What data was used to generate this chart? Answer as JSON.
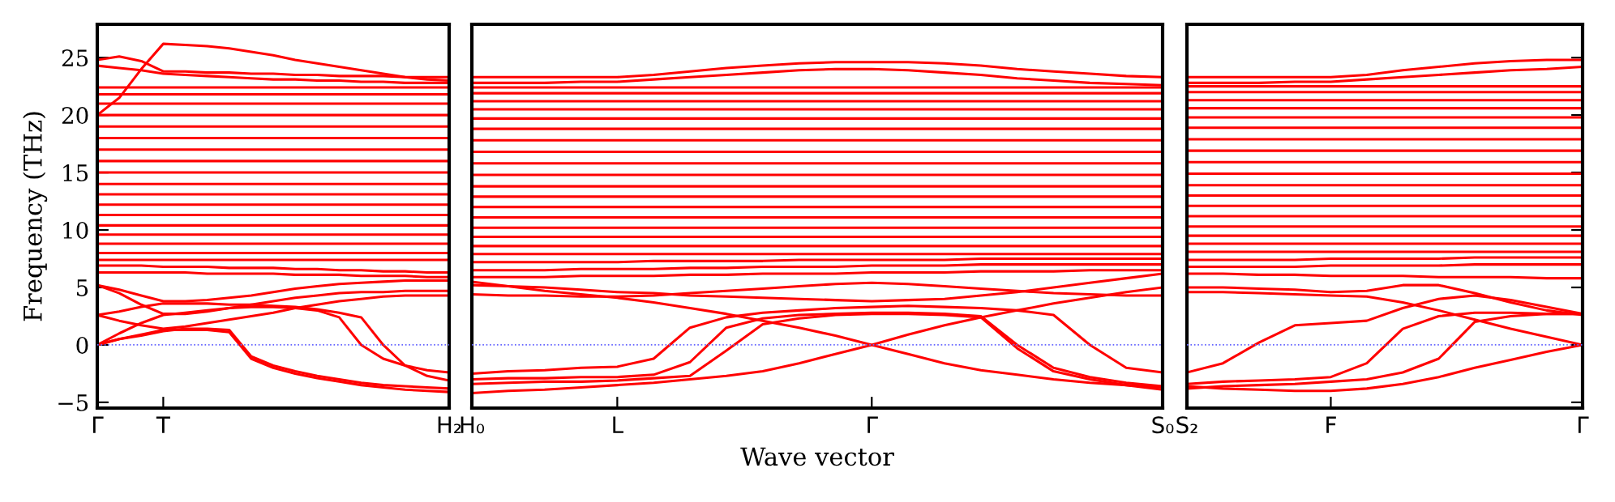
{
  "chart_data": [
    {
      "type": "line",
      "ylabel": "Frequency (THz)",
      "categories": [
        "Γ",
        null,
        null,
        "T",
        null,
        null,
        null,
        null,
        null,
        null,
        null,
        null,
        null,
        null,
        null,
        null,
        "H₂"
      ],
      "ylim": [
        -5.5,
        27.9
      ],
      "yticks": [
        {
          "value": -5,
          "label": "−5"
        },
        0,
        5,
        10,
        15,
        20,
        25
      ],
      "ref_lines": [
        {
          "axis": "y",
          "value": 0,
          "color": "#6666ff",
          "line_style": "dotted"
        }
      ],
      "series": [
        {
          "color": "#ff0000",
          "values": [
            0,
            0.5,
            0.9,
            1.3,
            1.3,
            1.3,
            1.1,
            -1.2,
            -2.0,
            -2.5,
            -2.9,
            -3.2,
            -3.5,
            -3.7,
            -3.9,
            -4.0,
            -4.1
          ]
        },
        {
          "color": "#ff0000",
          "values": [
            0,
            0.5,
            0.8,
            1.2,
            1.4,
            1.4,
            1.3,
            -1.0,
            -1.8,
            -2.3,
            -2.7,
            -3.0,
            -3.3,
            -3.5,
            -3.6,
            -3.7,
            -3.8
          ]
        },
        {
          "color": "#ff0000",
          "values": [
            0,
            1.0,
            1.9,
            2.6,
            2.8,
            3.0,
            3.2,
            3.3,
            3.3,
            3.2,
            3.0,
            2.4,
            0,
            -1.2,
            -1.8,
            -2.2,
            -2.4
          ]
        },
        {
          "color": "#ff0000",
          "values": [
            2.6,
            2.9,
            3.3,
            3.6,
            3.6,
            3.6,
            3.5,
            3.5,
            3.4,
            3.3,
            3.1,
            2.8,
            2.4,
            0,
            -1.8,
            -2.7,
            -3.1
          ]
        },
        {
          "color": "#ff0000",
          "values": [
            2.6,
            2.1,
            1.7,
            1.4,
            1.6,
            1.9,
            2.2,
            2.5,
            2.8,
            3.2,
            3.5,
            3.8,
            4.0,
            4.2,
            4.3,
            4.3,
            4.3
          ]
        },
        {
          "color": "#ff0000",
          "values": [
            5.2,
            4.5,
            3.5,
            2.7,
            2.7,
            2.9,
            3.2,
            3.5,
            3.8,
            4.1,
            4.3,
            4.5,
            4.6,
            4.6,
            4.7,
            4.7,
            4.7
          ]
        },
        {
          "color": "#ff0000",
          "values": [
            5.2,
            4.8,
            4.3,
            3.8,
            3.8,
            3.9,
            4.1,
            4.3,
            4.6,
            4.9,
            5.1,
            5.3,
            5.4,
            5.5,
            5.6,
            5.6,
            5.6
          ]
        },
        {
          "color": "#ff0000",
          "values": [
            20,
            21.5,
            24,
            26.2,
            26.1,
            26.0,
            25.8,
            25.5,
            25.2,
            24.8,
            24.5,
            24.2,
            23.9,
            23.6,
            23.3,
            23.1,
            23.0
          ]
        },
        {
          "color": "#ff0000",
          "values": [
            24.8,
            25.1,
            24.7,
            23.8,
            23.8,
            23.7,
            23.7,
            23.6,
            23.6,
            23.5,
            23.5,
            23.4,
            23.4,
            23.4,
            23.3,
            23.3,
            23.3
          ]
        },
        {
          "color": "#ff0000",
          "values": [
            24.3,
            24.1,
            23.9,
            23.6,
            23.5,
            23.4,
            23.3,
            23.2,
            23.1,
            23.1,
            23.0,
            23.0,
            22.9,
            22.9,
            22.8,
            22.8,
            22.8
          ]
        },
        {
          "color": "#ff0000",
          "values": [
            6.3,
            6.3,
            6.3,
            6.3,
            6.3,
            6.2,
            6.2,
            6.2,
            6.2,
            6.1,
            6.1,
            6.1,
            6.0,
            6.0,
            6.0,
            5.9,
            5.9
          ]
        },
        {
          "color": "#ff0000",
          "values": [
            6.9,
            6.9,
            6.9,
            6.8,
            6.8,
            6.8,
            6.7,
            6.7,
            6.7,
            6.6,
            6.6,
            6.5,
            6.5,
            6.4,
            6.4,
            6.3,
            6.3
          ]
        },
        {
          "color": "#ff0000",
          "values": [
            7.4,
            7.4,
            7.4,
            7.4,
            7.4,
            7.4,
            7.4,
            7.4,
            7.4,
            7.4,
            7.4,
            7.4,
            7.4,
            7.4,
            7.4,
            7.4,
            7.4
          ]
        },
        {
          "color": "#ff0000",
          "values": [
            8.0,
            8.0,
            8.0,
            8.0,
            8.0,
            8.0,
            8.0,
            8.0,
            8.0,
            8.0,
            8.0,
            8.0,
            8.0,
            8.0,
            8.0,
            8.0,
            8.0
          ]
        },
        {
          "color": "#ff0000",
          "values": [
            8.8,
            8.8,
            8.8,
            8.8,
            8.8,
            8.8,
            8.8,
            8.8,
            8.8,
            8.8,
            8.8,
            8.8,
            8.8,
            8.8,
            8.8,
            8.8,
            8.8
          ]
        },
        {
          "color": "#ff0000",
          "values": [
            9.6,
            9.6,
            9.6,
            9.6,
            9.6,
            9.6,
            9.6,
            9.6,
            9.6,
            9.6,
            9.6,
            9.6,
            9.6,
            9.6,
            9.6,
            9.6,
            9.6
          ]
        },
        {
          "color": "#ff0000",
          "values": [
            10.4,
            10.4,
            10.4,
            10.4,
            10.4,
            10.4,
            10.4,
            10.4,
            10.4,
            10.4,
            10.4,
            10.4,
            10.4,
            10.4,
            10.4,
            10.4,
            10.4
          ]
        },
        {
          "color": "#ff0000",
          "values": [
            11.3,
            11.3,
            11.3,
            11.3,
            11.3,
            11.3,
            11.3,
            11.3,
            11.3,
            11.3,
            11.3,
            11.3,
            11.3,
            11.3,
            11.3,
            11.3,
            11.3
          ]
        },
        {
          "color": "#ff0000",
          "values": [
            12.2,
            12.2,
            12.2,
            12.2,
            12.2,
            12.2,
            12.2,
            12.2,
            12.2,
            12.2,
            12.2,
            12.2,
            12.2,
            12.2,
            12.2,
            12.2,
            12.2
          ]
        },
        {
          "color": "#ff0000",
          "values": [
            13.1,
            13.1,
            13.1,
            13.1,
            13.1,
            13.1,
            13.1,
            13.1,
            13.1,
            13.1,
            13.1,
            13.1,
            13.1,
            13.1,
            13.1,
            13.1,
            13.1
          ]
        },
        {
          "color": "#ff0000",
          "values": [
            14.0,
            14.0,
            14.0,
            14.0,
            14.0,
            14.0,
            14.0,
            14.0,
            14.0,
            14.0,
            14.0,
            14.0,
            14.0,
            14.0,
            14.0,
            14.0,
            14.0
          ]
        },
        {
          "color": "#ff0000",
          "values": [
            15.0,
            15.0,
            15.0,
            15.0,
            15.0,
            15.0,
            15.0,
            15.0,
            15.0,
            15.0,
            15.0,
            15.0,
            15.0,
            15.0,
            15.0,
            15.0,
            15.0
          ]
        },
        {
          "color": "#ff0000",
          "values": [
            16.0,
            16.0,
            16.0,
            16.0,
            16.0,
            16.0,
            16.0,
            16.0,
            16.0,
            16.0,
            16.0,
            16.0,
            16.0,
            16.0,
            16.0,
            16.0,
            16.0
          ]
        },
        {
          "color": "#ff0000",
          "values": [
            17.0,
            17.0,
            17.0,
            17.0,
            17.0,
            17.0,
            17.0,
            17.0,
            17.0,
            17.0,
            17.0,
            17.0,
            17.0,
            17.0,
            17.0,
            17.0,
            17.0
          ]
        },
        {
          "color": "#ff0000",
          "values": [
            18.0,
            18.0,
            18.0,
            18.0,
            18.0,
            18.0,
            18.0,
            18.0,
            18.0,
            18.0,
            18.0,
            18.0,
            18.0,
            18.0,
            18.0,
            18.0,
            18.0
          ]
        },
        {
          "color": "#ff0000",
          "values": [
            19.0,
            19.0,
            19.0,
            19.0,
            19.0,
            19.0,
            19.0,
            19.0,
            19.0,
            19.0,
            19.0,
            19.0,
            19.0,
            19.0,
            19.0,
            19.0,
            19.0
          ]
        },
        {
          "color": "#ff0000",
          "values": [
            20.0,
            20.0,
            20.0,
            20.0,
            20.0,
            20.0,
            20.0,
            20.0,
            20.0,
            20.0,
            20.0,
            20.0,
            20.0,
            20.0,
            20.0,
            20.0,
            20.0
          ]
        },
        {
          "color": "#ff0000",
          "values": [
            21.0,
            21.0,
            21.0,
            21.0,
            21.0,
            21.0,
            21.0,
            21.0,
            21.0,
            21.0,
            21.0,
            21.0,
            21.0,
            21.0,
            21.0,
            21.0,
            21.0
          ]
        },
        {
          "color": "#ff0000",
          "values": [
            21.8,
            21.8,
            21.8,
            21.8,
            21.8,
            21.8,
            21.8,
            21.8,
            21.8,
            21.8,
            21.8,
            21.8,
            21.8,
            21.8,
            21.8,
            21.8,
            21.8
          ]
        },
        {
          "color": "#ff0000",
          "values": [
            22.4,
            22.4,
            22.4,
            22.4,
            22.4,
            22.4,
            22.4,
            22.4,
            22.4,
            22.4,
            22.4,
            22.4,
            22.4,
            22.4,
            22.4,
            22.4,
            22.4
          ]
        }
      ]
    },
    {
      "type": "line",
      "xlabel": "Wave vector",
      "categories": [
        "H₀",
        null,
        null,
        null,
        "L",
        null,
        null,
        null,
        null,
        null,
        null,
        "Γ",
        null,
        null,
        null,
        null,
        null,
        null,
        null,
        "S₀"
      ],
      "ylim": [
        -5.5,
        27.9
      ],
      "tick_labels": "x",
      "ref_lines": [
        {
          "axis": "y",
          "value": 0,
          "color": "#6666ff",
          "line_style": "dotted"
        }
      ],
      "series": [
        {
          "color": "#ff0000",
          "values": [
            -2.5,
            -2.3,
            -2.2,
            -2.0,
            -1.9,
            -1.2,
            1.5,
            2.4,
            2.8,
            3.0,
            3.2,
            3.3,
            3.4,
            3.3,
            3.2,
            3.0,
            2.6,
            0,
            -2.0,
            -2.4
          ]
        },
        {
          "color": "#ff0000",
          "values": [
            -3.0,
            -2.9,
            -2.9,
            -2.8,
            -2.8,
            -2.6,
            -1.5,
            1.5,
            2.3,
            2.6,
            2.7,
            2.8,
            2.8,
            2.7,
            2.5,
            0,
            -2.0,
            -2.8,
            -3.3,
            -3.6
          ]
        },
        {
          "color": "#ff0000",
          "values": [
            -3.4,
            -3.3,
            -3.2,
            -3.2,
            -3.1,
            -2.9,
            -2.7,
            -0.5,
            1.8,
            2.3,
            2.6,
            2.7,
            2.7,
            2.6,
            2.4,
            -0.3,
            -2.3,
            -3.0,
            -3.5,
            -3.9
          ]
        },
        {
          "color": "#ff0000",
          "values": [
            -4.2,
            -4.0,
            -3.9,
            -3.7,
            -3.5,
            -3.3,
            -3.0,
            -2.7,
            -2.3,
            -1.6,
            -0.8,
            0,
            0.9,
            1.7,
            2.4,
            3.0,
            3.6,
            4.1,
            4.6,
            5.0
          ]
        },
        {
          "color": "#ff0000",
          "values": [
            5.5,
            5.1,
            4.7,
            4.4,
            4.1,
            3.7,
            3.2,
            2.7,
            2.1,
            1.5,
            0.8,
            0,
            -0.8,
            -1.6,
            -2.2,
            -2.6,
            -3.0,
            -3.3,
            -3.5,
            -3.7
          ]
        },
        {
          "color": "#ff0000",
          "values": [
            4.4,
            4.3,
            4.3,
            4.2,
            4.2,
            4.3,
            4.5,
            4.7,
            4.9,
            5.1,
            5.3,
            5.4,
            5.3,
            5.1,
            4.9,
            4.7,
            4.5,
            4.4,
            4.3,
            4.3
          ]
        },
        {
          "color": "#ff0000",
          "values": [
            5.2,
            5.1,
            5.0,
            4.8,
            4.6,
            4.5,
            4.3,
            4.2,
            4.1,
            4.0,
            3.9,
            3.8,
            3.9,
            4.0,
            4.3,
            4.6,
            5.0,
            5.4,
            5.8,
            6.2
          ]
        },
        {
          "color": "#ff0000",
          "values": [
            23.3,
            23.3,
            23.3,
            23.3,
            23.3,
            23.5,
            23.8,
            24.1,
            24.3,
            24.5,
            24.6,
            24.6,
            24.6,
            24.5,
            24.3,
            24.0,
            23.8,
            23.6,
            23.4,
            23.3
          ]
        },
        {
          "color": "#ff0000",
          "values": [
            22.8,
            22.8,
            22.8,
            22.9,
            22.9,
            23.1,
            23.3,
            23.5,
            23.7,
            23.9,
            24.0,
            24.0,
            23.9,
            23.7,
            23.5,
            23.2,
            23.0,
            22.8,
            22.7,
            22.6
          ]
        },
        {
          "color": "#ff0000",
          "values": [
            5.9,
            5.9,
            5.9,
            6.0,
            6.0,
            6.0,
            6.1,
            6.1,
            6.2,
            6.2,
            6.2,
            6.3,
            6.3,
            6.3,
            6.4,
            6.4,
            6.4,
            6.5,
            6.5,
            6.5
          ]
        },
        {
          "color": "#ff0000",
          "values": [
            6.5,
            6.5,
            6.5,
            6.6,
            6.6,
            6.6,
            6.7,
            6.7,
            6.8,
            6.8,
            6.8,
            6.9,
            6.9,
            6.9,
            7.0,
            7.0,
            7.0,
            7.0,
            7.0,
            7.0
          ]
        },
        {
          "color": "#ff0000",
          "values": [
            7.2,
            7.2,
            7.2,
            7.2,
            7.2,
            7.3,
            7.3,
            7.3,
            7.3,
            7.4,
            7.4,
            7.4,
            7.4,
            7.4,
            7.5,
            7.5,
            7.5,
            7.5,
            7.5,
            7.5
          ]
        },
        {
          "color": "#ff0000",
          "values": [
            7.9,
            7.9,
            7.9,
            7.9,
            7.9,
            7.9,
            7.9,
            7.9,
            7.9,
            7.9,
            7.9,
            7.9,
            7.9,
            7.9,
            7.9,
            7.9,
            7.9,
            7.9,
            7.9,
            7.9
          ]
        },
        {
          "color": "#ff0000",
          "values": [
            8.6,
            8.6,
            8.6,
            8.6,
            8.6,
            8.6,
            8.6,
            8.6,
            8.6,
            8.6,
            8.6,
            8.6,
            8.6,
            8.6,
            8.6,
            8.6,
            8.6,
            8.6,
            8.6,
            8.6
          ]
        },
        {
          "color": "#ff0000",
          "values": [
            9.4,
            9.4,
            9.4,
            9.4,
            9.4,
            9.4,
            9.4,
            9.4,
            9.4,
            9.4,
            9.4,
            9.4,
            9.4,
            9.4,
            9.4,
            9.4,
            9.4,
            9.4,
            9.4,
            9.4
          ]
        },
        {
          "color": "#ff0000",
          "values": [
            10.2,
            10.2,
            10.2,
            10.2,
            10.2,
            10.2,
            10.2,
            10.2,
            10.2,
            10.2,
            10.2,
            10.2,
            10.2,
            10.2,
            10.2,
            10.2,
            10.2,
            10.2,
            10.2,
            10.2
          ]
        },
        {
          "color": "#ff0000",
          "values": [
            11.1,
            11.1,
            11.1,
            11.1,
            11.1,
            11.1,
            11.1,
            11.1,
            11.1,
            11.1,
            11.1,
            11.1,
            11.1,
            11.1,
            11.1,
            11.1,
            11.1,
            11.1,
            11.1,
            11.1
          ]
        },
        {
          "color": "#ff0000",
          "values": [
            12.0,
            12.0,
            12.0,
            12.0,
            12.0,
            12.0,
            12.0,
            12.0,
            12.0,
            12.0,
            12.0,
            12.0,
            12.0,
            12.0,
            12.0,
            12.0,
            12.0,
            12.0,
            12.0,
            12.0
          ]
        },
        {
          "color": "#ff0000",
          "values": [
            12.9,
            12.9,
            12.9,
            12.9,
            12.9,
            12.9,
            12.9,
            12.9,
            12.9,
            12.9,
            12.9,
            12.9,
            12.9,
            12.9,
            12.9,
            12.9,
            12.9,
            12.9,
            12.9,
            12.9
          ]
        },
        {
          "color": "#ff0000",
          "values": [
            13.8,
            13.8,
            13.8,
            13.8,
            13.8,
            13.8,
            13.8,
            13.8,
            13.8,
            13.8,
            13.8,
            13.8,
            13.8,
            13.8,
            13.8,
            13.8,
            13.8,
            13.8,
            13.8,
            13.8
          ]
        },
        {
          "color": "#ff0000",
          "values": [
            14.8,
            14.8,
            14.8,
            14.8,
            14.8,
            14.8,
            14.8,
            14.8,
            14.8,
            14.8,
            14.8,
            14.8,
            14.8,
            14.8,
            14.8,
            14.8,
            14.8,
            14.8,
            14.8,
            14.8
          ]
        },
        {
          "color": "#ff0000",
          "values": [
            15.8,
            15.8,
            15.8,
            15.8,
            15.8,
            15.8,
            15.8,
            15.8,
            15.8,
            15.8,
            15.8,
            15.8,
            15.8,
            15.8,
            15.8,
            15.8,
            15.8,
            15.8,
            15.8,
            15.8
          ]
        },
        {
          "color": "#ff0000",
          "values": [
            16.8,
            16.8,
            16.8,
            16.8,
            16.8,
            16.8,
            16.8,
            16.8,
            16.8,
            16.8,
            16.8,
            16.8,
            16.8,
            16.8,
            16.8,
            16.8,
            16.8,
            16.8,
            16.8,
            16.8
          ]
        },
        {
          "color": "#ff0000",
          "values": [
            17.8,
            17.8,
            17.8,
            17.8,
            17.8,
            17.8,
            17.8,
            17.8,
            17.8,
            17.8,
            17.8,
            17.8,
            17.8,
            17.8,
            17.8,
            17.8,
            17.8,
            17.8,
            17.8,
            17.8
          ]
        },
        {
          "color": "#ff0000",
          "values": [
            18.8,
            18.8,
            18.8,
            18.8,
            18.8,
            18.8,
            18.8,
            18.8,
            18.8,
            18.8,
            18.8,
            18.8,
            18.8,
            18.8,
            18.8,
            18.8,
            18.8,
            18.8,
            18.8,
            18.8
          ]
        },
        {
          "color": "#ff0000",
          "values": [
            19.7,
            19.7,
            19.7,
            19.7,
            19.7,
            19.7,
            19.7,
            19.7,
            19.7,
            19.7,
            19.7,
            19.7,
            19.7,
            19.7,
            19.7,
            19.7,
            19.7,
            19.7,
            19.7,
            19.7
          ]
        },
        {
          "color": "#ff0000",
          "values": [
            20.5,
            20.5,
            20.5,
            20.5,
            20.5,
            20.5,
            20.5,
            20.5,
            20.5,
            20.5,
            20.5,
            20.5,
            20.5,
            20.5,
            20.5,
            20.5,
            20.5,
            20.5,
            20.5,
            20.5
          ]
        },
        {
          "color": "#ff0000",
          "values": [
            21.2,
            21.2,
            21.2,
            21.2,
            21.2,
            21.2,
            21.2,
            21.2,
            21.2,
            21.2,
            21.2,
            21.2,
            21.2,
            21.2,
            21.2,
            21.2,
            21.2,
            21.2,
            21.2,
            21.2
          ]
        },
        {
          "color": "#ff0000",
          "values": [
            21.9,
            21.9,
            21.9,
            21.9,
            21.9,
            21.9,
            21.9,
            21.9,
            21.9,
            21.9,
            21.9,
            21.9,
            21.9,
            21.9,
            21.9,
            21.9,
            21.9,
            21.9,
            21.9,
            21.9
          ]
        },
        {
          "color": "#ff0000",
          "values": [
            22.4,
            22.4,
            22.4,
            22.4,
            22.4,
            22.4,
            22.4,
            22.4,
            22.4,
            22.4,
            22.4,
            22.4,
            22.4,
            22.4,
            22.4,
            22.4,
            22.4,
            22.4,
            22.4,
            22.4
          ]
        }
      ]
    },
    {
      "type": "line",
      "categories": [
        "S₂",
        null,
        null,
        null,
        "F",
        null,
        null,
        null,
        null,
        null,
        null,
        "Γ"
      ],
      "ylim": [
        -5.5,
        27.9
      ],
      "yticks": [
        {
          "value": -5,
          "label": null
        },
        {
          "value": 0,
          "label": null
        },
        {
          "value": 5,
          "label": null
        },
        {
          "value": 10,
          "label": null
        },
        {
          "value": 15,
          "label": null
        },
        {
          "value": 20,
          "label": null
        },
        {
          "value": 25,
          "label": null
        }
      ],
      "tick_labels": "x",
      "ref_lines": [
        {
          "axis": "y",
          "value": 0,
          "color": "#6666ff",
          "line_style": "dotted"
        }
      ],
      "series": [
        {
          "color": "#ff0000",
          "values": [
            -2.4,
            -1.6,
            0.2,
            1.7,
            1.9,
            2.1,
            3.2,
            4.0,
            4.3,
            3.9,
            3.3,
            2.7
          ]
        },
        {
          "color": "#ff0000",
          "values": [
            -3.4,
            -3.2,
            -3.1,
            -3.0,
            -2.8,
            -1.6,
            1.4,
            2.5,
            2.8,
            2.8,
            2.7,
            2.7
          ]
        },
        {
          "color": "#ff0000",
          "values": [
            -3.8,
            -3.6,
            -3.5,
            -3.4,
            -3.2,
            -3.0,
            -2.4,
            -1.2,
            2.0,
            2.5,
            2.7,
            2.7
          ]
        },
        {
          "color": "#ff0000",
          "values": [
            -3.6,
            -3.8,
            -3.9,
            -4.0,
            -4.0,
            -3.8,
            -3.4,
            -2.8,
            -2.0,
            -1.3,
            -0.6,
            0
          ]
        },
        {
          "color": "#ff0000",
          "values": [
            4.6,
            4.6,
            4.5,
            4.4,
            4.3,
            4.2,
            3.7,
            3.0,
            2.2,
            1.4,
            0.7,
            0
          ]
        },
        {
          "color": "#ff0000",
          "values": [
            5.0,
            5.0,
            4.9,
            4.8,
            4.6,
            4.7,
            5.2,
            5.2,
            4.5,
            3.7,
            3.0,
            2.6
          ]
        },
        {
          "color": "#ff0000",
          "values": [
            23.3,
            23.3,
            23.3,
            23.3,
            23.3,
            23.5,
            23.9,
            24.2,
            24.5,
            24.7,
            24.8,
            24.8
          ]
        },
        {
          "color": "#ff0000",
          "values": [
            22.8,
            22.8,
            22.8,
            22.9,
            22.9,
            23.1,
            23.3,
            23.5,
            23.7,
            23.9,
            24.0,
            24.2
          ]
        },
        {
          "color": "#ff0000",
          "values": [
            6.2,
            6.2,
            6.1,
            6.1,
            6.0,
            6.0,
            6.0,
            5.9,
            5.9,
            5.9,
            5.8,
            5.8
          ]
        },
        {
          "color": "#ff0000",
          "values": [
            6.8,
            6.8,
            6.8,
            6.8,
            6.9,
            6.9,
            6.9,
            6.9,
            7.0,
            7.0,
            7.0,
            7.0
          ]
        },
        {
          "color": "#ff0000",
          "values": [
            7.4,
            7.4,
            7.4,
            7.4,
            7.5,
            7.5,
            7.5,
            7.5,
            7.6,
            7.6,
            7.6,
            7.6
          ]
        },
        {
          "color": "#ff0000",
          "values": [
            8.1,
            8.1,
            8.1,
            8.1,
            8.1,
            8.1,
            8.1,
            8.1,
            8.1,
            8.1,
            8.1,
            8.1
          ]
        },
        {
          "color": "#ff0000",
          "values": [
            8.8,
            8.8,
            8.8,
            8.8,
            8.8,
            8.8,
            8.8,
            8.8,
            8.8,
            8.8,
            8.8,
            8.8
          ]
        },
        {
          "color": "#ff0000",
          "values": [
            9.5,
            9.5,
            9.5,
            9.5,
            9.5,
            9.5,
            9.5,
            9.5,
            9.5,
            9.5,
            9.5,
            9.5
          ]
        },
        {
          "color": "#ff0000",
          "values": [
            10.3,
            10.3,
            10.3,
            10.3,
            10.3,
            10.3,
            10.3,
            10.3,
            10.3,
            10.3,
            10.3,
            10.3
          ]
        },
        {
          "color": "#ff0000",
          "values": [
            11.2,
            11.2,
            11.2,
            11.2,
            11.2,
            11.2,
            11.2,
            11.2,
            11.2,
            11.2,
            11.2,
            11.2
          ]
        },
        {
          "color": "#ff0000",
          "values": [
            12.1,
            12.1,
            12.1,
            12.1,
            12.1,
            12.1,
            12.1,
            12.1,
            12.1,
            12.1,
            12.1,
            12.1
          ]
        },
        {
          "color": "#ff0000",
          "values": [
            13.0,
            13.0,
            13.0,
            13.0,
            13.0,
            13.0,
            13.0,
            13.0,
            13.0,
            13.0,
            13.0,
            13.0
          ]
        },
        {
          "color": "#ff0000",
          "values": [
            13.9,
            13.9,
            13.9,
            13.9,
            13.9,
            13.9,
            13.9,
            13.9,
            13.9,
            13.9,
            13.9,
            13.9
          ]
        },
        {
          "color": "#ff0000",
          "values": [
            14.9,
            14.9,
            14.9,
            14.9,
            14.9,
            14.9,
            14.9,
            14.9,
            14.9,
            14.9,
            14.9,
            14.9
          ]
        },
        {
          "color": "#ff0000",
          "values": [
            15.9,
            15.9,
            15.9,
            15.9,
            15.9,
            15.9,
            15.9,
            15.9,
            15.9,
            15.9,
            15.9,
            15.9
          ]
        },
        {
          "color": "#ff0000",
          "values": [
            16.9,
            16.9,
            16.9,
            16.9,
            16.9,
            16.9,
            16.9,
            16.9,
            16.9,
            16.9,
            16.9,
            16.9
          ]
        },
        {
          "color": "#ff0000",
          "values": [
            17.9,
            17.9,
            17.9,
            17.9,
            17.9,
            17.9,
            17.9,
            17.9,
            17.9,
            17.9,
            17.9,
            17.9
          ]
        },
        {
          "color": "#ff0000",
          "values": [
            18.9,
            18.9,
            18.9,
            18.9,
            18.9,
            18.9,
            18.9,
            18.9,
            18.9,
            18.9,
            18.9,
            18.9
          ]
        },
        {
          "color": "#ff0000",
          "values": [
            19.8,
            19.8,
            19.8,
            19.8,
            19.8,
            19.8,
            19.8,
            19.8,
            19.8,
            19.8,
            19.8,
            19.8
          ]
        },
        {
          "color": "#ff0000",
          "values": [
            20.6,
            20.6,
            20.6,
            20.6,
            20.6,
            20.6,
            20.6,
            20.6,
            20.6,
            20.6,
            20.6,
            20.6
          ]
        },
        {
          "color": "#ff0000",
          "values": [
            21.3,
            21.3,
            21.3,
            21.3,
            21.3,
            21.3,
            21.3,
            21.3,
            21.3,
            21.3,
            21.3,
            21.3
          ]
        },
        {
          "color": "#ff0000",
          "values": [
            22.0,
            22.0,
            22.0,
            22.0,
            22.0,
            22.0,
            22.0,
            22.0,
            22.0,
            22.0,
            22.0,
            22.0
          ]
        },
        {
          "color": "#ff0000",
          "values": [
            22.5,
            22.5,
            22.5,
            22.5,
            22.5,
            22.5,
            22.5,
            22.5,
            22.5,
            22.5,
            22.5,
            22.5
          ]
        }
      ]
    }
  ]
}
